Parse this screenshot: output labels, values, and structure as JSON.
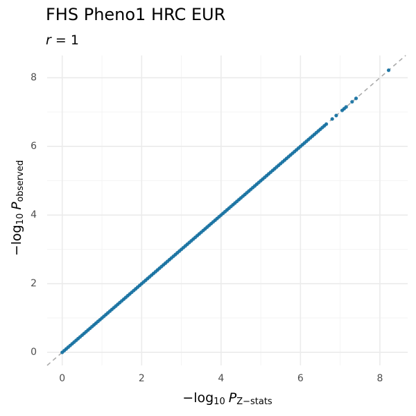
{
  "chart_data": {
    "type": "scatter",
    "title": "FHS Pheno1 HRC EUR",
    "subtitle": {
      "var": "r",
      "rest": "= 1"
    },
    "xlabel": {
      "prefix": "−log",
      "sub1": "10",
      "var": "P",
      "sub2": "Z−stats"
    },
    "ylabel": {
      "prefix": "−log",
      "sub1": "10",
      "var": "P",
      "sub2": "observed"
    },
    "x": [
      0,
      0.05,
      0.1,
      0.15,
      0.2,
      0.25,
      0.3,
      0.35,
      0.4,
      0.45,
      0.5,
      0.55,
      0.6,
      0.65,
      0.7,
      0.75,
      0.8,
      0.85,
      0.9,
      0.95,
      1,
      1.05,
      1.1,
      1.15,
      1.2,
      1.25,
      1.3,
      1.35,
      1.4,
      1.45,
      1.5,
      1.55,
      1.6,
      1.65,
      1.7,
      1.75,
      1.8,
      1.85,
      1.9,
      1.95,
      2,
      2.05,
      2.1,
      2.15,
      2.2,
      2.25,
      2.3,
      2.35,
      2.4,
      2.45,
      2.5,
      2.55,
      2.6,
      2.65,
      2.7,
      2.75,
      2.8,
      2.85,
      2.9,
      2.95,
      3,
      3.05,
      3.1,
      3.15,
      3.2,
      3.25,
      3.3,
      3.35,
      3.4,
      3.45,
      3.5,
      3.55,
      3.6,
      3.65,
      3.7,
      3.75,
      3.8,
      3.85,
      3.9,
      3.95,
      4,
      4.05,
      4.1,
      4.15,
      4.2,
      4.25,
      4.3,
      4.35,
      4.4,
      4.45,
      4.5,
      4.55,
      4.6,
      4.65,
      4.7,
      4.75,
      4.8,
      4.85,
      4.9,
      4.95,
      5,
      5.05,
      5.1,
      5.15,
      5.2,
      5.25,
      5.3,
      5.35,
      5.4,
      5.45,
      5.5,
      5.55,
      5.6,
      5.65,
      5.7,
      5.75,
      5.8,
      5.85,
      5.9,
      5.95,
      6,
      6.05,
      6.1,
      6.15,
      6.2,
      6.25,
      6.3,
      6.35,
      6.4,
      6.45,
      6.5,
      6.55,
      6.6,
      6.65,
      6.8,
      6.9,
      7.05,
      7.1,
      7.15,
      7.3,
      7.4,
      8.22
    ],
    "values": [
      0,
      0.05,
      0.1,
      0.15,
      0.2,
      0.25,
      0.3,
      0.35,
      0.4,
      0.45,
      0.5,
      0.55,
      0.6,
      0.65,
      0.7,
      0.75,
      0.8,
      0.85,
      0.9,
      0.95,
      1,
      1.05,
      1.1,
      1.15,
      1.2,
      1.25,
      1.3,
      1.35,
      1.4,
      1.45,
      1.5,
      1.55,
      1.6,
      1.65,
      1.7,
      1.75,
      1.8,
      1.85,
      1.9,
      1.95,
      2,
      2.05,
      2.1,
      2.15,
      2.2,
      2.25,
      2.3,
      2.35,
      2.4,
      2.45,
      2.5,
      2.55,
      2.6,
      2.65,
      2.7,
      2.75,
      2.8,
      2.85,
      2.9,
      2.95,
      3,
      3.05,
      3.1,
      3.15,
      3.2,
      3.25,
      3.3,
      3.35,
      3.4,
      3.45,
      3.5,
      3.55,
      3.6,
      3.65,
      3.7,
      3.75,
      3.8,
      3.85,
      3.9,
      3.95,
      4,
      4.05,
      4.1,
      4.15,
      4.2,
      4.25,
      4.3,
      4.35,
      4.4,
      4.45,
      4.5,
      4.55,
      4.6,
      4.65,
      4.7,
      4.75,
      4.8,
      4.85,
      4.9,
      4.95,
      5,
      5.05,
      5.1,
      5.15,
      5.2,
      5.25,
      5.3,
      5.35,
      5.4,
      5.45,
      5.5,
      5.55,
      5.6,
      5.65,
      5.7,
      5.75,
      5.8,
      5.85,
      5.9,
      5.95,
      6,
      6.05,
      6.1,
      6.15,
      6.2,
      6.25,
      6.3,
      6.35,
      6.4,
      6.45,
      6.5,
      6.55,
      6.6,
      6.65,
      6.8,
      6.9,
      7.05,
      7.1,
      7.15,
      7.3,
      7.4,
      8.22
    ],
    "color": "#0e6d9e",
    "xlim": [
      -0.38,
      8.7
    ],
    "ylim": [
      -0.38,
      8.65
    ],
    "xticks": [
      0,
      2,
      4,
      6,
      8
    ],
    "yticks": [
      0,
      2,
      4,
      6,
      8
    ],
    "minor_xticks": [
      1,
      3,
      5,
      7
    ],
    "minor_yticks": [
      1,
      3,
      5,
      7
    ],
    "grid": true,
    "reference_line": true
  }
}
